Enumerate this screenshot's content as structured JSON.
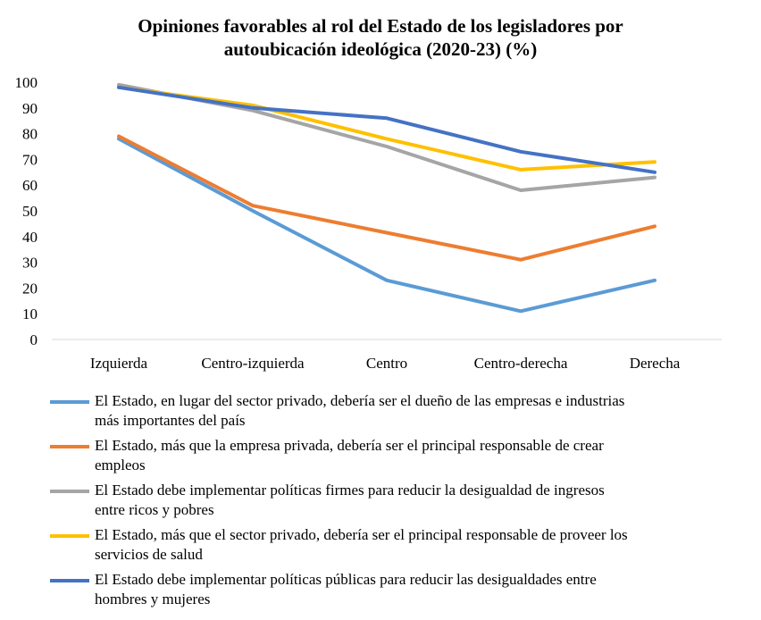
{
  "chart_data": {
    "type": "line",
    "title_lines": [
      "Opiniones favorables al rol del Estado de los legisladores por",
      "autoubicación ideológica (2020-23) (%)"
    ],
    "categories": [
      "Izquierda",
      "Centro-izquierda",
      "Centro",
      "Centro-derecha",
      "Derecha"
    ],
    "ylim": [
      0,
      100
    ],
    "yticks": [
      "0",
      "10",
      "20",
      "30",
      "40",
      "50",
      "60",
      "70",
      "80",
      "90",
      "100"
    ],
    "grid": false,
    "legend_position": "bottom",
    "series": [
      {
        "name": "El Estado, en lugar del sector privado, debería ser el dueño de las empresas e industrias más importantes del país",
        "name_lines": [
          "El Estado, en lugar del sector privado, debería ser el dueño de las empresas e industrias",
          "más importantes del país"
        ],
        "color": "#5B9BD5",
        "values": [
          78,
          50,
          23,
          11,
          23
        ]
      },
      {
        "name": "El Estado, más que la empresa privada, debería ser el principal responsable de crear empleos",
        "name_lines": [
          "El Estado, más que la empresa privada, debería ser el principal responsable de crear",
          "empleos"
        ],
        "color": "#ED7D31",
        "values": [
          79,
          52,
          41.5,
          31,
          44
        ]
      },
      {
        "name": "El Estado debe implementar políticas firmes para reducir la desigualdad de ingresos entre ricos y pobres",
        "name_lines": [
          "El Estado debe implementar políticas firmes para reducir la desigualdad de ingresos",
          "entre ricos y pobres"
        ],
        "color": "#A5A5A5",
        "values": [
          99,
          89,
          75,
          58,
          63
        ]
      },
      {
        "name": "El Estado, más que el sector privado, debería ser el principal responsable de proveer los servicios de salud",
        "name_lines": [
          "El Estado, más que el sector privado, debería ser el principal responsable de proveer los",
          "servicios de salud"
        ],
        "color": "#FFC000",
        "values": [
          98,
          91,
          78,
          66,
          69
        ]
      },
      {
        "name": "El Estado debe implementar políticas públicas para reducir las desigualdades entre hombres y mujeres",
        "name_lines": [
          "El Estado debe implementar políticas públicas para reducir las desigualdades entre",
          "hombres y mujeres"
        ],
        "color": "#4472C4",
        "values": [
          98,
          90,
          86,
          73,
          65
        ]
      }
    ]
  }
}
